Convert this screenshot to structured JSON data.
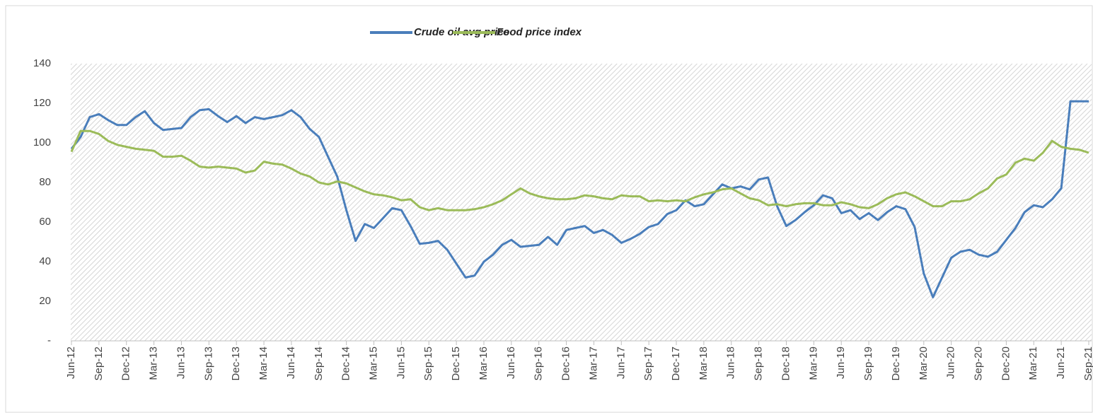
{
  "chart_data": {
    "type": "line",
    "categories": [
      "Jun-12",
      null,
      null,
      "Sep-12",
      null,
      null,
      "Dec-12",
      null,
      null,
      "Mar-13",
      null,
      null,
      "Jun-13",
      null,
      null,
      "Sep-13",
      null,
      null,
      "Dec-13",
      null,
      null,
      "Mar-14",
      null,
      null,
      "Jun-14",
      null,
      null,
      "Sep-14",
      null,
      null,
      "Dec-14",
      null,
      null,
      "Mar-15",
      null,
      null,
      "Jun-15",
      null,
      null,
      "Sep-15",
      null,
      null,
      "Dec-15",
      null,
      null,
      "Mar-16",
      null,
      null,
      "Jun-16",
      null,
      null,
      "Sep-16",
      null,
      null,
      "Dec-16",
      null,
      null,
      "Mar-17",
      null,
      null,
      "Jun-17",
      null,
      null,
      "Sep-17",
      null,
      null,
      "Dec-17",
      null,
      null,
      "Mar-18",
      null,
      null,
      "Jun-18",
      null,
      null,
      "Sep-18",
      null,
      null,
      "Dec-18",
      null,
      null,
      "Mar-19",
      null,
      null,
      "Jun-19",
      null,
      null,
      "Sep-19",
      null,
      null,
      "Dec-19",
      null,
      null,
      "Mar-20",
      null,
      null,
      "Jun-20",
      null,
      null,
      "Sep-20",
      null,
      null,
      "Dec-20",
      null,
      null,
      "Mar-21",
      null,
      null,
      "Jun-21",
      null,
      null,
      "Sep-21"
    ],
    "series": [
      {
        "name": "Crude oil avg price",
        "color": "#4a7ebb",
        "values": [
          97,
          103,
          113,
          114.5,
          111.5,
          109,
          109,
          113,
          116,
          110,
          106.5,
          107,
          107.5,
          113,
          116.5,
          117,
          113.5,
          110.5,
          113.5,
          110,
          113,
          112,
          113,
          114,
          116.5,
          113,
          107,
          103,
          93,
          83,
          66,
          50.5,
          59,
          57,
          62,
          67,
          66,
          58,
          49,
          49.5,
          50.5,
          46,
          39,
          32,
          33,
          40,
          43.5,
          48.5,
          51,
          47.5,
          48,
          48.5,
          52.5,
          48.5,
          56,
          57,
          58,
          54.5,
          56,
          53.5,
          49.5,
          51.5,
          54,
          57.5,
          59,
          64,
          66,
          71,
          68,
          69,
          74,
          79,
          77,
          78,
          76.5,
          81.5,
          82.5,
          68,
          58,
          61,
          65,
          68.5,
          73.5,
          72,
          64.5,
          66,
          61.5,
          64.5,
          61,
          65,
          68,
          66.5,
          57.5,
          34,
          22,
          32,
          42,
          45,
          46,
          43.5,
          42.5,
          45,
          51,
          57,
          65,
          68.5,
          67.5,
          71.5,
          77,
          121,
          121,
          121
        ]
      },
      {
        "name": "Food price index",
        "color": "#9bbb59",
        "values": [
          95.5,
          106,
          106,
          104.5,
          101,
          99,
          98,
          97,
          96.5,
          96,
          93,
          93,
          93.5,
          91,
          88,
          87.5,
          88,
          87.5,
          87,
          85,
          86,
          90.5,
          89.5,
          89,
          87,
          84.5,
          83,
          80,
          79,
          80.5,
          79.5,
          77.5,
          75.5,
          74,
          73.5,
          72.5,
          71,
          71.5,
          67.5,
          66,
          67,
          66,
          66,
          66,
          66.5,
          67.5,
          69,
          71,
          74,
          77,
          74.5,
          73,
          72,
          71.5,
          71.5,
          72,
          73.5,
          73,
          72,
          71.5,
          73.5,
          73,
          73,
          70.5,
          71,
          70.5,
          71,
          70.5,
          72.5,
          74,
          75,
          76.5,
          77,
          74.5,
          72,
          71,
          68.5,
          69,
          68,
          69,
          69.5,
          69.5,
          68.5,
          68.5,
          70,
          69,
          67.5,
          67,
          69,
          72,
          74,
          75,
          73,
          70.5,
          68,
          68,
          70.5,
          70.5,
          71.5,
          74.5,
          77,
          82,
          84,
          90,
          92,
          91,
          95,
          101,
          98,
          97,
          96.5,
          95
        ]
      }
    ],
    "ylim": [
      0,
      140
    ],
    "yticks": [
      {
        "value": 0,
        "label": "-"
      },
      20,
      40,
      60,
      80,
      100,
      120,
      140
    ],
    "legend": "top"
  }
}
